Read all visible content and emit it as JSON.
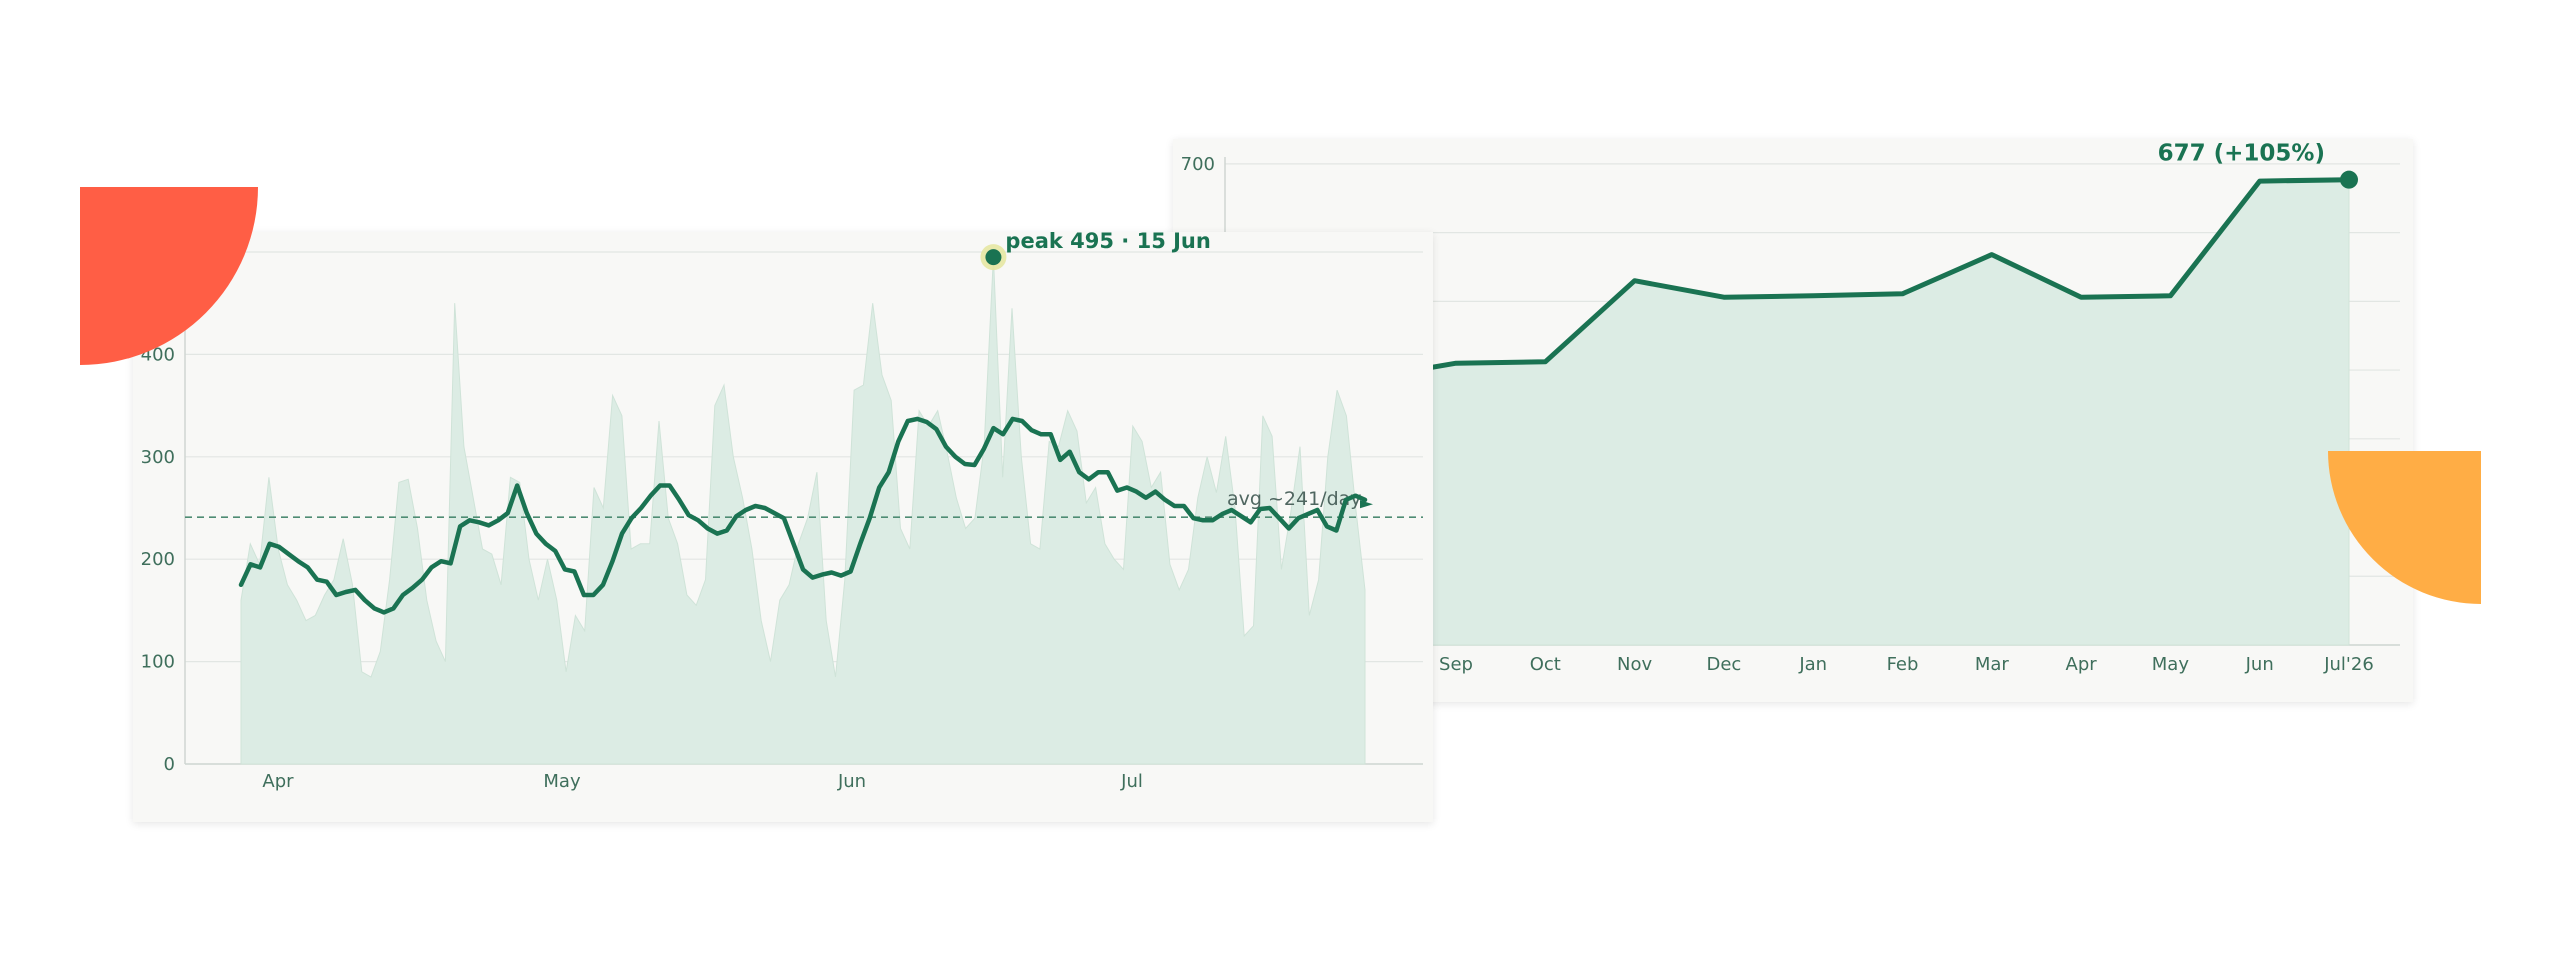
{
  "chart_data": [
    {
      "type": "line",
      "title": "",
      "xlabel": "",
      "ylabel": "",
      "x_tick_labels": [
        "Apr",
        "May",
        "Jun",
        "Jul"
      ],
      "y_ticks": [
        0,
        100,
        200,
        300,
        400
      ],
      "ylim": [
        0,
        500
      ],
      "grid": true,
      "series": [
        {
          "style": "area",
          "values": [
            160,
            215,
            195,
            280,
            210,
            175,
            160,
            140,
            145,
            165,
            180,
            220,
            175,
            90,
            85,
            110,
            180,
            275,
            278,
            230,
            160,
            120,
            100,
            450,
            310,
            260,
            210,
            205,
            175,
            280,
            275,
            200,
            160,
            200,
            160,
            90,
            145,
            130,
            270,
            250,
            360,
            340,
            210,
            215,
            215,
            335,
            240,
            215,
            165,
            155,
            180,
            350,
            370,
            300,
            260,
            210,
            140,
            100,
            160,
            175,
            215,
            240,
            285,
            140,
            85,
            180,
            365,
            370,
            450,
            380,
            355,
            230,
            210,
            345,
            330,
            345,
            305,
            260,
            230,
            240,
            310,
            495,
            280,
            445,
            300,
            215,
            210,
            315,
            310,
            345,
            325,
            255,
            270,
            215,
            200,
            190,
            330,
            315,
            270,
            285,
            195,
            170,
            190,
            260,
            300,
            265,
            320,
            250,
            125,
            135,
            340,
            320,
            190,
            245,
            310,
            145,
            180,
            300,
            365,
            340,
            250,
            170
          ]
        },
        {
          "style": "line",
          "values": [
            175,
            195,
            192,
            215,
            212,
            205,
            198,
            192,
            180,
            178,
            165,
            168,
            170,
            160,
            152,
            148,
            152,
            165,
            172,
            180,
            192,
            198,
            196,
            232,
            238,
            236,
            233,
            238,
            245,
            272,
            245,
            225,
            215,
            208,
            190,
            188,
            165,
            165,
            175,
            198,
            225,
            240,
            250,
            262,
            272,
            272,
            258,
            243,
            238,
            230,
            225,
            228,
            242,
            248,
            252,
            250,
            245,
            240,
            215,
            190,
            182,
            185,
            187,
            184,
            188,
            215,
            240,
            270,
            285,
            315,
            335,
            337,
            334,
            327,
            310,
            300,
            293,
            292,
            308,
            328,
            322,
            337,
            335,
            326,
            322,
            322,
            297,
            305,
            285,
            278,
            285,
            285,
            267,
            270,
            266,
            260,
            266,
            258,
            252,
            252,
            240,
            238,
            238,
            244,
            248,
            242,
            236,
            249,
            250,
            240,
            230,
            240,
            244,
            248,
            232,
            228,
            258,
            262,
            258
          ],
          "point_annotation": {
            "value": 495,
            "label": "peak 495 · 15 Jun"
          }
        }
      ],
      "reference_line": {
        "value": 241,
        "label": "avg ~241/day"
      }
    },
    {
      "type": "area",
      "title": "",
      "xlabel": "",
      "ylabel": "",
      "categories": [
        "Sep",
        "Oct",
        "Nov",
        "Dec",
        "Jan",
        "Feb",
        "Mar",
        "Apr",
        "May",
        "Jun",
        "Jul'26"
      ],
      "y_tick_labels_visible": [
        700
      ],
      "ylim": [
        0,
        710
      ],
      "grid": true,
      "series": [
        {
          "values": [
            410,
            412,
            530,
            506,
            508,
            511,
            568,
            506,
            508,
            675,
            677
          ]
        }
      ],
      "end_annotation": {
        "value": 677,
        "label": "677  (+105%)"
      },
      "colors": {
        "line": "#1a7352",
        "fill": "#dcece4"
      }
    }
  ],
  "decor": {
    "red_quarter_circle": "#ff5e45",
    "orange_quarter_circle": "#ffad45"
  }
}
